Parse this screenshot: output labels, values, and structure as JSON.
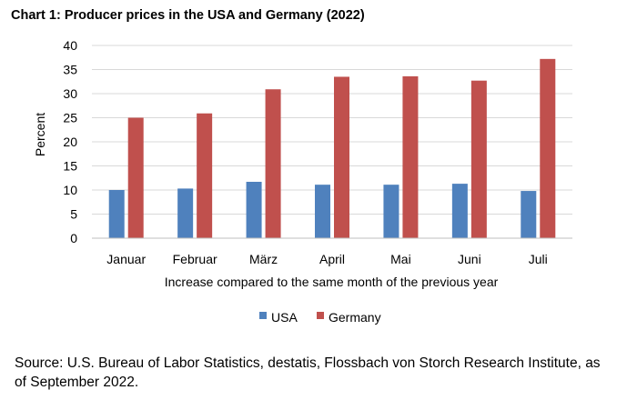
{
  "chart_data": {
    "type": "bar",
    "title": "Chart 1: Producer prices in the USA and Germany (2022)",
    "categories": [
      "Januar",
      "Februar",
      "März",
      "April",
      "Mai",
      "Juni",
      "Juli"
    ],
    "series": [
      {
        "name": "USA",
        "color": "#4f81bd",
        "values": [
          10.0,
          10.3,
          11.7,
          11.1,
          11.1,
          11.3,
          9.8
        ]
      },
      {
        "name": "Germany",
        "color": "#c0504d",
        "values": [
          25.0,
          25.9,
          30.9,
          33.5,
          33.6,
          32.7,
          37.2
        ]
      }
    ],
    "xlabel": "Increase compared to the same month of the previous year",
    "ylabel": "Percent",
    "ylim": [
      0,
      40
    ],
    "yticks": [
      0,
      5,
      10,
      15,
      20,
      25,
      30,
      35,
      40
    ],
    "grid": true,
    "legend_position": "bottom"
  },
  "source": "Source: U.S. Bureau of Labor Statistics, destatis, Flossbach von Storch Research Institute, as of September 2022."
}
